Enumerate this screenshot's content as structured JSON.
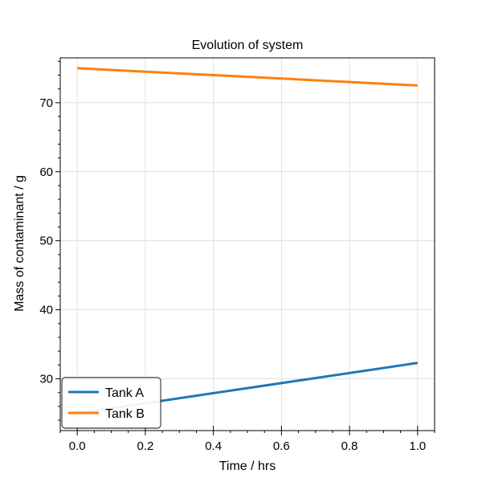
{
  "chart_data": {
    "type": "line",
    "title": "Evolution of system",
    "xlabel": "Time / hrs",
    "ylabel": "Mass of contaminant / g",
    "xlim": [
      -0.05,
      1.05
    ],
    "ylim": [
      22.5,
      76.5
    ],
    "xticks": [
      0.0,
      0.2,
      0.4,
      0.6,
      0.8,
      1.0
    ],
    "xtick_labels": [
      "0.0",
      "0.2",
      "0.4",
      "0.6",
      "0.8",
      "1.0"
    ],
    "yticks": [
      30,
      40,
      50,
      60,
      70
    ],
    "ytick_labels": [
      "30",
      "40",
      "50",
      "60",
      "70"
    ],
    "grid": true,
    "legend_position": "lower-left",
    "series": [
      {
        "name": "Tank A",
        "color": "#1f77b4",
        "x": [
          0.0,
          1.0
        ],
        "y": [
          25.0,
          32.3
        ]
      },
      {
        "name": "Tank B",
        "color": "#ff7f0e",
        "x": [
          0.0,
          1.0
        ],
        "y": [
          75.0,
          72.5
        ]
      }
    ]
  }
}
